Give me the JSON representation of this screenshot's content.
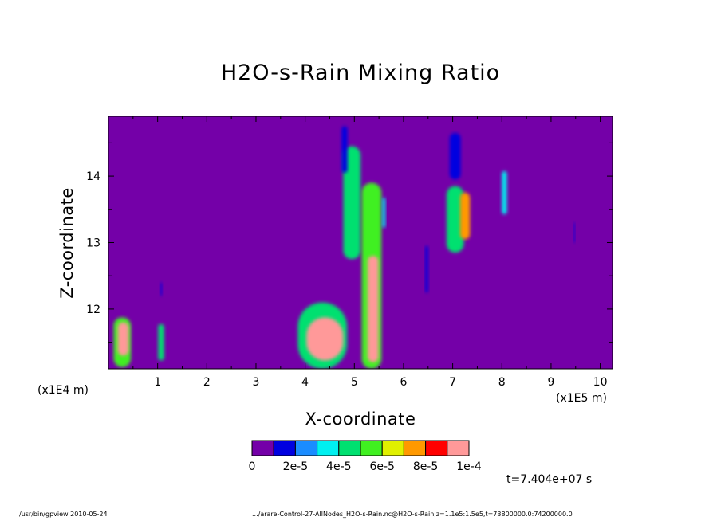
{
  "chart_data": {
    "type": "heatmap",
    "title": "H2O-s-Rain Mixing Ratio",
    "xlabel": "X-coordinate",
    "ylabel": "Z-coordinate",
    "x_multiplier_label": "(x1E5 m)",
    "y_multiplier_label": "(x1E4 m)",
    "xlim": [
      0,
      10.25
    ],
    "ylim": [
      11.1,
      14.9
    ],
    "x_ticks": [
      1,
      2,
      3,
      4,
      5,
      6,
      7,
      8,
      9,
      10
    ],
    "x_tick_labels": [
      "1",
      "2",
      "3",
      "4",
      "5",
      "6",
      "7",
      "8",
      "9",
      "10"
    ],
    "y_ticks": [
      12,
      13,
      14
    ],
    "y_tick_labels": [
      "12",
      "13",
      "14"
    ],
    "background_color": "#7400a8",
    "colorbar": {
      "colors": [
        "#7400a8",
        "#0000e0",
        "#1a8cff",
        "#00f0f0",
        "#00e070",
        "#40f020",
        "#e0f000",
        "#ff9900",
        "#ff0000",
        "#ff9999"
      ],
      "labels": [
        "0",
        "2e-5",
        "4e-5",
        "6e-5",
        "8e-5",
        "1e-4"
      ]
    },
    "cells": [
      {
        "x": 0.28,
        "z": 11.5,
        "w": 0.35,
        "h": 0.75,
        "level": 5
      },
      {
        "x": 0.3,
        "z": 11.55,
        "w": 0.22,
        "h": 0.5,
        "level": 9
      },
      {
        "x": 1.07,
        "z": 11.5,
        "w": 0.12,
        "h": 0.55,
        "level": 4
      },
      {
        "x": 1.07,
        "z": 12.3,
        "w": 0.04,
        "h": 0.2,
        "level": 1
      },
      {
        "x": 4.35,
        "z": 11.6,
        "w": 1.0,
        "h": 1.0,
        "level": 4
      },
      {
        "x": 4.4,
        "z": 11.55,
        "w": 0.75,
        "h": 0.65,
        "level": 9
      },
      {
        "x": 4.95,
        "z": 13.6,
        "w": 0.35,
        "h": 1.7,
        "level": 4
      },
      {
        "x": 4.8,
        "z": 14.4,
        "w": 0.12,
        "h": 0.7,
        "level": 1
      },
      {
        "x": 5.35,
        "z": 12.5,
        "w": 0.4,
        "h": 2.8,
        "level": 5
      },
      {
        "x": 5.38,
        "z": 12.0,
        "w": 0.22,
        "h": 1.6,
        "level": 9
      },
      {
        "x": 5.6,
        "z": 13.45,
        "w": 0.06,
        "h": 0.45,
        "level": 3
      },
      {
        "x": 6.47,
        "z": 12.6,
        "w": 0.06,
        "h": 0.7,
        "level": 1
      },
      {
        "x": 7.05,
        "z": 14.3,
        "w": 0.22,
        "h": 0.7,
        "level": 1
      },
      {
        "x": 7.05,
        "z": 13.35,
        "w": 0.35,
        "h": 1.0,
        "level": 4
      },
      {
        "x": 7.25,
        "z": 13.4,
        "w": 0.2,
        "h": 0.7,
        "level": 7
      },
      {
        "x": 8.05,
        "z": 13.75,
        "w": 0.1,
        "h": 0.65,
        "level": 3
      },
      {
        "x": 9.47,
        "z": 13.15,
        "w": 0.03,
        "h": 0.3,
        "level": 1
      }
    ]
  },
  "time_label": "t=7.404e+07 s",
  "footer_left": "/usr/bin/gpview   2010-05-24",
  "footer_right": ".../arare-Control-27-AllNodes_H2O-s-Rain.nc@H2O-s-Rain,z=1.1e5:1.5e5,t=73800000.0:74200000.0"
}
